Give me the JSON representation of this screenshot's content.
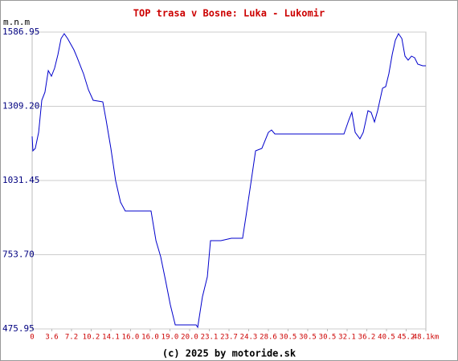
{
  "chart_data": {
    "type": "line",
    "title": "TOP trasa v Bosne: Luka - Lukomir",
    "y_label": "m.n.m",
    "footer": "(c) 2025 by motoride.sk",
    "grid": true,
    "xlim": [
      0,
      20
    ],
    "xticks": [
      0,
      {
        "value": 1,
        "label": "3.6"
      },
      {
        "value": 2,
        "label": "7.2"
      },
      {
        "value": 3,
        "label": "10.2"
      },
      {
        "value": 4,
        "label": "14.1"
      },
      {
        "value": 5,
        "label": "16.0"
      },
      {
        "value": 6,
        "label": "16.0"
      },
      {
        "value": 7,
        "label": "19.0"
      },
      {
        "value": 8,
        "label": "20.0"
      },
      {
        "value": 9,
        "label": "23.1"
      },
      {
        "value": 10,
        "label": "23.7"
      },
      {
        "value": 11,
        "label": "24.3"
      },
      {
        "value": 12,
        "label": "28.6"
      },
      {
        "value": 13,
        "label": "30.5"
      },
      {
        "value": 14,
        "label": "30.5"
      },
      {
        "value": 15,
        "label": "30.5"
      },
      {
        "value": 16,
        "label": "32.1"
      },
      {
        "value": 17,
        "label": "36.2"
      },
      {
        "value": 18,
        "label": "40.5"
      },
      {
        "value": 19,
        "label": "45.2"
      },
      {
        "value": 20,
        "label": "48.1km"
      }
    ],
    "ylim": [
      475.95,
      1586.95
    ],
    "yticks": [
      475.95,
      {
        "value": 753.7,
        "label": "753.70"
      },
      1031.45,
      {
        "value": 1309.2,
        "label": "1309.20"
      },
      1586.95
    ],
    "series": [
      {
        "color": "#0000cc",
        "x": [
          0,
          0.04,
          0.16,
          0.33,
          0.49,
          0.65,
          0.82,
          0.98,
          1.14,
          1.31,
          1.47,
          1.63,
          1.8,
          1.96,
          2.12,
          2.29,
          2.45,
          2.61,
          2.86,
          3.1,
          3.35,
          3.59,
          3.76,
          4,
          4.24,
          4.49,
          4.73,
          5.31,
          6.04,
          6.29,
          6.53,
          6.78,
          7.02,
          7.27,
          7.76,
          8.33,
          8.41,
          8.65,
          8.9,
          9.06,
          9.59,
          10.12,
          10.69,
          10.86,
          11.1,
          11.35,
          11.67,
          12,
          12.16,
          12.33,
          13.06,
          13.88,
          14.69,
          15.51,
          15.84,
          16.08,
          16.24,
          16.41,
          16.65,
          16.82,
          17.06,
          17.22,
          17.39,
          17.55,
          17.8,
          17.96,
          18.12,
          18.29,
          18.45,
          18.61,
          18.78,
          18.94,
          19.1,
          19.27,
          19.43,
          19.59,
          19.84,
          20
        ],
        "values": [
          1196.6,
          1142.5,
          1151.6,
          1211.6,
          1331.7,
          1361.8,
          1442.8,
          1421.8,
          1451.8,
          1502.9,
          1562.9,
          1580.9,
          1562.9,
          1541.9,
          1520.9,
          1490.9,
          1460.8,
          1430.8,
          1370.8,
          1331.7,
          1328.7,
          1325.7,
          1256.6,
          1151.6,
          1031.5,
          950.3,
          917.3,
          917.3,
          917.3,
          806.2,
          746.2,
          656.1,
          566.0,
          491.0,
          491.0,
          491.0,
          482.0,
          596.0,
          671.1,
          806.2,
          806.2,
          815.2,
          815.2,
          896.3,
          1016.4,
          1142.5,
          1151.6,
          1211.6,
          1220.6,
          1205.6,
          1205.6,
          1205.6,
          1205.6,
          1205.6,
          1205.6,
          1256.6,
          1286.7,
          1211.6,
          1187.6,
          1211.6,
          1292.7,
          1286.7,
          1250.6,
          1292.7,
          1376.8,
          1382.8,
          1430.8,
          1502.9,
          1556.9,
          1580.9,
          1562.9,
          1496.9,
          1481.9,
          1496.9,
          1490.9,
          1466.9,
          1460.8,
          1460.8
        ]
      }
    ]
  }
}
